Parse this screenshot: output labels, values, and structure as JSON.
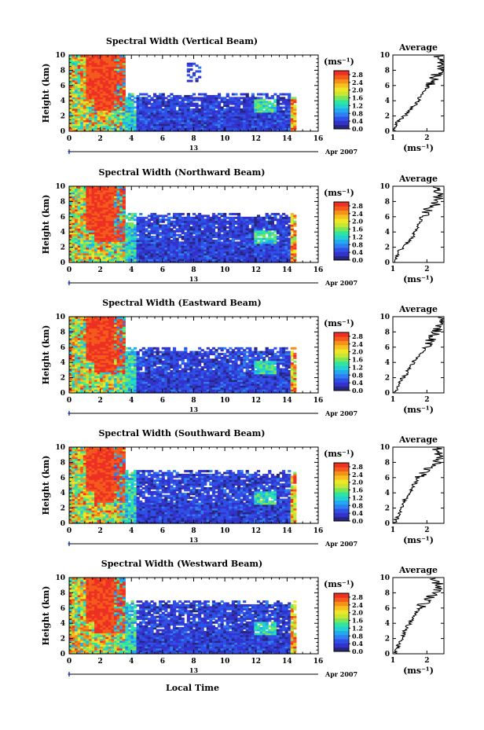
{
  "figure": {
    "xlabel": "Local Time",
    "cb_unit": "(ms⁻¹)",
    "avg_title": "Average",
    "avg_xlabel": "(ms⁻¹)"
  },
  "chart_data": [
    {
      "type": "heatmap",
      "title": "Spectral Width (Vertical Beam)",
      "ylabel": "Height (km)",
      "xlim": [
        0,
        16
      ],
      "ylim": [
        0,
        10
      ],
      "x_ticks": [
        "0",
        "2",
        "4",
        "6",
        "8",
        "10",
        "12",
        "14",
        "16"
      ],
      "y_ticks": [
        "0",
        "2",
        "4",
        "6",
        "8",
        "10"
      ],
      "date_day": "13",
      "date_label": "Apr 2007",
      "colorbar": {
        "label": "(ms⁻¹)",
        "range": [
          0,
          3.0
        ],
        "ticks": [
          "0.0",
          "0.4",
          "0.8",
          "1.2",
          "1.6",
          "2.0",
          "2.4",
          "2.8"
        ],
        "colors": [
          "#27267e",
          "#3333cc",
          "#2f50e6",
          "#2f7ff0",
          "#22aaf0",
          "#24d0d0",
          "#2ee6a0",
          "#7be65a",
          "#c8e632",
          "#f0e628",
          "#f5c020",
          "#f59018",
          "#f45a1c",
          "#ee3024"
        ]
      },
      "regions": [
        {
          "x": [
            0,
            3.6
          ],
          "y": [
            0,
            10
          ],
          "value": 2.2
        },
        {
          "x": [
            3.6,
            14.5
          ],
          "y": [
            0,
            5
          ],
          "value": 0.4
        },
        {
          "x": [
            7.5,
            8.4
          ],
          "y": [
            6.3,
            9
          ],
          "value": 0.5
        }
      ],
      "average": {
        "title": "Average",
        "xlabel": "(ms⁻¹)",
        "xlim": [
          1,
          2.5
        ],
        "x_ticks": [
          "1",
          "2"
        ],
        "y_ticks": [
          "0",
          "2",
          "4",
          "6",
          "8",
          "10"
        ],
        "height": [
          0,
          0.5,
          1,
          1.5,
          2,
          2.5,
          3,
          3.5,
          4,
          4.5,
          5,
          5.5,
          6,
          6.5,
          7,
          7.5,
          8,
          8.5,
          9,
          9.5,
          10
        ],
        "values": [
          1.05,
          1.05,
          1.1,
          1.2,
          1.35,
          1.45,
          1.55,
          1.65,
          1.75,
          1.8,
          1.9,
          2.0,
          2.05,
          2.15,
          2.2,
          2.3,
          2.35,
          2.4,
          2.45,
          2.4,
          2.3
        ]
      }
    },
    {
      "type": "heatmap",
      "title": "Spectral Width (Northward Beam)",
      "ylabel": "Height (km)",
      "xlim": [
        0,
        16
      ],
      "ylim": [
        0,
        10
      ],
      "x_ticks": [
        "0",
        "2",
        "4",
        "6",
        "8",
        "10",
        "12",
        "14",
        "16"
      ],
      "y_ticks": [
        "0",
        "2",
        "4",
        "6",
        "8",
        "10"
      ],
      "date_day": "13",
      "date_label": "Apr 2007",
      "colorbar": {
        "label": "(ms⁻¹)",
        "range": [
          0,
          3.0
        ],
        "ticks": [
          "0.0",
          "0.4",
          "0.8",
          "1.2",
          "1.6",
          "2.0",
          "2.4",
          "2.8"
        ],
        "colors": [
          "#27267e",
          "#3333cc",
          "#2f50e6",
          "#2f7ff0",
          "#22aaf0",
          "#24d0d0",
          "#2ee6a0",
          "#7be65a",
          "#c8e632",
          "#f0e628",
          "#f5c020",
          "#f59018",
          "#f45a1c",
          "#ee3024"
        ]
      },
      "regions": [
        {
          "x": [
            0,
            3.6
          ],
          "y": [
            0,
            10
          ],
          "value": 2.2
        },
        {
          "x": [
            3.6,
            14.5
          ],
          "y": [
            0,
            6.5
          ],
          "value": 0.4
        }
      ],
      "average": {
        "title": "Average",
        "xlabel": "(ms⁻¹)",
        "xlim": [
          1,
          2.5
        ],
        "x_ticks": [
          "1",
          "2"
        ],
        "y_ticks": [
          "0",
          "2",
          "4",
          "6",
          "8",
          "10"
        ],
        "height": [
          0,
          0.5,
          1,
          1.5,
          2,
          2.5,
          3,
          3.5,
          4,
          4.5,
          5,
          5.5,
          6,
          6.5,
          7,
          7.5,
          8,
          8.5,
          9,
          9.5,
          10
        ],
        "values": [
          1.05,
          1.1,
          1.15,
          1.2,
          1.3,
          1.4,
          1.5,
          1.6,
          1.65,
          1.7,
          1.75,
          1.8,
          1.85,
          1.95,
          2.05,
          2.2,
          2.3,
          2.35,
          2.4,
          2.35,
          2.3
        ]
      }
    },
    {
      "type": "heatmap",
      "title": "Spectral Width (Eastward Beam)",
      "ylabel": "Height (km)",
      "xlim": [
        0,
        16
      ],
      "ylim": [
        0,
        10
      ],
      "x_ticks": [
        "0",
        "2",
        "4",
        "6",
        "8",
        "10",
        "12",
        "14",
        "16"
      ],
      "y_ticks": [
        "0",
        "2",
        "4",
        "6",
        "8",
        "10"
      ],
      "date_day": "13",
      "date_label": "Apr 2007",
      "colorbar": {
        "label": "(ms⁻¹)",
        "range": [
          0,
          3.0
        ],
        "ticks": [
          "0.0",
          "0.4",
          "0.8",
          "1.2",
          "1.6",
          "2.0",
          "2.4",
          "2.8"
        ],
        "colors": [
          "#27267e",
          "#3333cc",
          "#2f50e6",
          "#2f7ff0",
          "#22aaf0",
          "#24d0d0",
          "#2ee6a0",
          "#7be65a",
          "#c8e632",
          "#f0e628",
          "#f5c020",
          "#f59018",
          "#f45a1c",
          "#ee3024"
        ]
      },
      "regions": [
        {
          "x": [
            0,
            3.6
          ],
          "y": [
            0,
            10
          ],
          "value": 2.2
        },
        {
          "x": [
            3.6,
            14.5
          ],
          "y": [
            0,
            6
          ],
          "value": 0.4
        }
      ],
      "average": {
        "title": "Average",
        "xlabel": "(ms⁻¹)",
        "xlim": [
          1,
          2.5
        ],
        "x_ticks": [
          "1",
          "2"
        ],
        "y_ticks": [
          "0",
          "2",
          "4",
          "6",
          "8",
          "10"
        ],
        "height": [
          0,
          0.5,
          1,
          1.5,
          2,
          2.5,
          3,
          3.5,
          4,
          4.5,
          5,
          5.5,
          6,
          6.5,
          7,
          7.5,
          8,
          8.5,
          9,
          9.5,
          10
        ],
        "values": [
          1.05,
          1.1,
          1.15,
          1.2,
          1.3,
          1.4,
          1.45,
          1.55,
          1.6,
          1.7,
          1.8,
          1.9,
          1.95,
          2.05,
          2.1,
          2.2,
          2.25,
          2.35,
          2.4,
          2.45,
          2.4
        ]
      }
    },
    {
      "type": "heatmap",
      "title": "Spectral Width (Southward Beam)",
      "ylabel": "Height (km)",
      "xlim": [
        0,
        16
      ],
      "ylim": [
        0,
        10
      ],
      "x_ticks": [
        "0",
        "2",
        "4",
        "6",
        "8",
        "10",
        "12",
        "14",
        "16"
      ],
      "y_ticks": [
        "0",
        "2",
        "4",
        "6",
        "8",
        "10"
      ],
      "date_day": "13",
      "date_label": "Apr 2007",
      "colorbar": {
        "label": "(ms⁻¹)",
        "range": [
          0,
          3.0
        ],
        "ticks": [
          "0.0",
          "0.4",
          "0.8",
          "1.2",
          "1.6",
          "2.0",
          "2.4",
          "2.8"
        ],
        "colors": [
          "#27267e",
          "#3333cc",
          "#2f50e6",
          "#2f7ff0",
          "#22aaf0",
          "#24d0d0",
          "#2ee6a0",
          "#7be65a",
          "#c8e632",
          "#f0e628",
          "#f5c020",
          "#f59018",
          "#f45a1c",
          "#ee3024"
        ]
      },
      "regions": [
        {
          "x": [
            0,
            3.6
          ],
          "y": [
            0,
            10
          ],
          "value": 2.2
        },
        {
          "x": [
            3.6,
            14.5
          ],
          "y": [
            0,
            7
          ],
          "value": 0.4
        }
      ],
      "average": {
        "title": "Average",
        "xlabel": "(ms⁻¹)",
        "xlim": [
          1,
          2.5
        ],
        "x_ticks": [
          "1",
          "2"
        ],
        "y_ticks": [
          "0",
          "2",
          "4",
          "6",
          "8",
          "10"
        ],
        "height": [
          0,
          0.5,
          1,
          1.5,
          2,
          2.5,
          3,
          3.5,
          4,
          4.5,
          5,
          5.5,
          6,
          6.5,
          7,
          7.5,
          8,
          8.5,
          9,
          9.5,
          10
        ],
        "values": [
          1.05,
          1.1,
          1.15,
          1.2,
          1.25,
          1.3,
          1.35,
          1.4,
          1.5,
          1.55,
          1.6,
          1.7,
          1.75,
          1.85,
          1.95,
          2.1,
          2.3,
          2.4,
          2.4,
          2.35,
          2.3
        ]
      }
    },
    {
      "type": "heatmap",
      "title": "Spectral Width (Westward Beam)",
      "ylabel": "Height (km)",
      "xlim": [
        0,
        16
      ],
      "ylim": [
        0,
        10
      ],
      "x_ticks": [
        "0",
        "2",
        "4",
        "6",
        "8",
        "10",
        "12",
        "14",
        "16"
      ],
      "y_ticks": [
        "0",
        "2",
        "4",
        "6",
        "8",
        "10"
      ],
      "date_day": "13",
      "date_label": "Apr 2007",
      "colorbar": {
        "label": "(ms⁻¹)",
        "range": [
          0,
          3.0
        ],
        "ticks": [
          "0.0",
          "0.4",
          "0.8",
          "1.2",
          "1.6",
          "2.0",
          "2.4",
          "2.8"
        ],
        "colors": [
          "#27267e",
          "#3333cc",
          "#2f50e6",
          "#2f7ff0",
          "#22aaf0",
          "#24d0d0",
          "#2ee6a0",
          "#7be65a",
          "#c8e632",
          "#f0e628",
          "#f5c020",
          "#f59018",
          "#f45a1c",
          "#ee3024"
        ]
      },
      "regions": [
        {
          "x": [
            0,
            3.6
          ],
          "y": [
            0,
            10
          ],
          "value": 2.2
        },
        {
          "x": [
            3.6,
            14.5
          ],
          "y": [
            0,
            7
          ],
          "value": 0.4
        }
      ],
      "average": {
        "title": "Average",
        "xlabel": "(ms⁻¹)",
        "xlim": [
          1,
          2.5
        ],
        "x_ticks": [
          "1",
          "2"
        ],
        "y_ticks": [
          "0",
          "2",
          "4",
          "6",
          "8",
          "10"
        ],
        "height": [
          0,
          0.5,
          1,
          1.5,
          2,
          2.5,
          3,
          3.5,
          4,
          4.5,
          5,
          5.5,
          6,
          6.5,
          7,
          7.5,
          8,
          8.5,
          9,
          9.5,
          10
        ],
        "values": [
          1.05,
          1.1,
          1.15,
          1.2,
          1.25,
          1.3,
          1.35,
          1.4,
          1.5,
          1.55,
          1.65,
          1.7,
          1.8,
          1.9,
          2.0,
          2.1,
          2.2,
          2.3,
          2.35,
          2.3,
          2.2
        ]
      }
    }
  ]
}
